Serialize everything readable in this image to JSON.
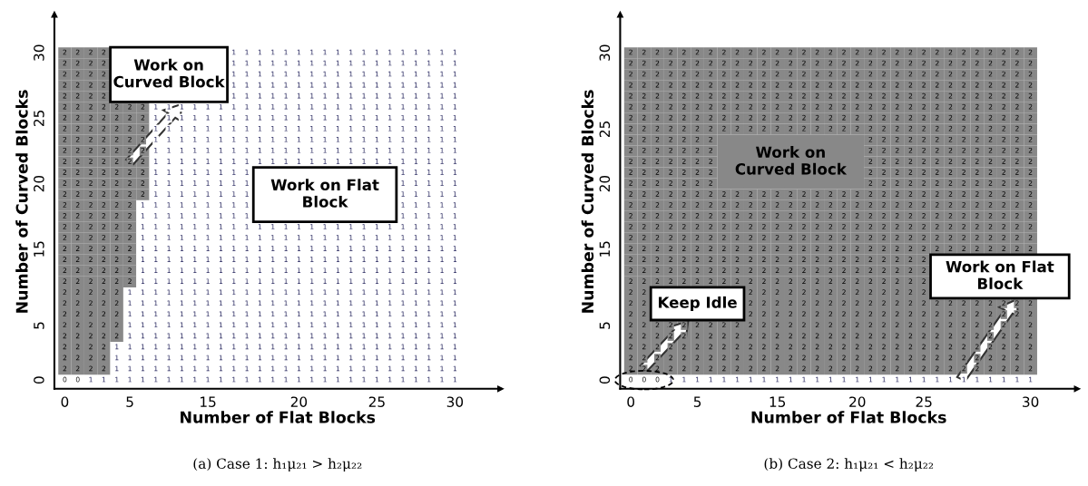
{
  "chart_data": [
    {
      "type": "heatmap",
      "xlabel": "Number of Flat Blocks",
      "ylabel": "Number of Curved Blocks",
      "data_labels": true,
      "categories": [
        "0",
        null,
        null,
        null,
        null,
        "5",
        null,
        null,
        null,
        null,
        null,
        "15",
        null,
        null,
        null,
        null,
        null,
        null,
        "20",
        null,
        null,
        null,
        null,
        null,
        "25",
        null,
        null,
        null,
        null,
        null,
        "30"
      ],
      "y_categories": [
        "30",
        null,
        null,
        null,
        null,
        null,
        "25",
        null,
        null,
        null,
        null,
        null,
        "20",
        null,
        null,
        null,
        null,
        null,
        "15",
        null,
        null,
        null,
        null,
        null,
        null,
        "5",
        null,
        null,
        null,
        null,
        "0"
      ],
      "cells": [
        [
          2,
          2,
          2,
          2,
          null,
          null,
          null,
          null,
          null,
          null,
          null,
          null,
          null,
          1,
          1,
          1,
          1,
          1,
          1,
          1,
          1,
          1,
          1,
          1,
          1,
          1,
          1,
          1,
          1,
          1,
          1
        ],
        [
          2,
          2,
          2,
          2,
          null,
          null,
          null,
          null,
          null,
          null,
          null,
          null,
          null,
          1,
          1,
          1,
          1,
          1,
          1,
          1,
          1,
          1,
          1,
          1,
          1,
          1,
          1,
          1,
          1,
          1,
          1
        ],
        [
          2,
          2,
          2,
          2,
          null,
          null,
          null,
          null,
          null,
          null,
          null,
          null,
          null,
          1,
          1,
          1,
          1,
          1,
          1,
          1,
          1,
          1,
          1,
          1,
          1,
          1,
          1,
          1,
          1,
          1,
          1
        ],
        [
          2,
          2,
          2,
          2,
          null,
          null,
          null,
          null,
          null,
          null,
          null,
          null,
          null,
          1,
          1,
          1,
          1,
          1,
          1,
          1,
          1,
          1,
          1,
          1,
          1,
          1,
          1,
          1,
          1,
          1,
          1
        ],
        [
          2,
          2,
          2,
          2,
          null,
          null,
          null,
          null,
          null,
          null,
          null,
          null,
          null,
          1,
          1,
          1,
          1,
          1,
          1,
          1,
          1,
          1,
          1,
          1,
          1,
          1,
          1,
          1,
          1,
          1,
          1
        ],
        [
          2,
          2,
          2,
          2,
          2,
          2,
          2,
          1,
          1,
          1,
          1,
          1,
          1,
          1,
          1,
          1,
          1,
          1,
          1,
          1,
          1,
          1,
          1,
          1,
          1,
          1,
          1,
          1,
          1,
          1,
          1
        ],
        [
          2,
          2,
          2,
          2,
          2,
          2,
          2,
          1,
          1,
          1,
          1,
          1,
          1,
          1,
          1,
          1,
          1,
          1,
          1,
          1,
          1,
          1,
          1,
          1,
          1,
          1,
          1,
          1,
          1,
          1,
          1
        ],
        [
          2,
          2,
          2,
          2,
          2,
          2,
          2,
          1,
          1,
          1,
          1,
          1,
          1,
          1,
          1,
          1,
          1,
          1,
          1,
          1,
          1,
          1,
          1,
          1,
          1,
          1,
          1,
          1,
          1,
          1,
          1
        ],
        [
          2,
          2,
          2,
          2,
          2,
          2,
          2,
          1,
          1,
          1,
          1,
          1,
          1,
          1,
          1,
          1,
          1,
          1,
          1,
          1,
          1,
          1,
          1,
          1,
          1,
          1,
          1,
          1,
          1,
          1,
          1
        ],
        [
          2,
          2,
          2,
          2,
          2,
          2,
          2,
          1,
          1,
          1,
          1,
          1,
          1,
          1,
          1,
          1,
          1,
          1,
          1,
          1,
          1,
          1,
          1,
          1,
          1,
          1,
          1,
          1,
          1,
          1,
          1
        ],
        [
          2,
          2,
          2,
          2,
          2,
          2,
          2,
          1,
          1,
          1,
          1,
          1,
          1,
          1,
          1,
          1,
          1,
          1,
          1,
          1,
          1,
          1,
          1,
          1,
          1,
          1,
          1,
          1,
          1,
          1,
          1
        ],
        [
          2,
          2,
          2,
          2,
          2,
          2,
          2,
          1,
          1,
          1,
          1,
          1,
          1,
          1,
          1,
          null,
          null,
          null,
          null,
          null,
          null,
          null,
          null,
          null,
          null,
          null,
          1,
          1,
          1,
          1,
          1
        ],
        [
          2,
          2,
          2,
          2,
          2,
          2,
          2,
          1,
          1,
          1,
          1,
          1,
          1,
          1,
          1,
          null,
          null,
          null,
          null,
          null,
          null,
          null,
          null,
          null,
          null,
          null,
          1,
          1,
          1,
          1,
          1
        ],
        [
          2,
          2,
          2,
          2,
          2,
          2,
          2,
          1,
          1,
          1,
          1,
          1,
          1,
          1,
          1,
          null,
          null,
          null,
          null,
          null,
          null,
          null,
          null,
          null,
          null,
          null,
          1,
          1,
          1,
          1,
          1
        ],
        [
          2,
          2,
          2,
          2,
          2,
          2,
          1,
          1,
          1,
          1,
          1,
          1,
          1,
          1,
          1,
          null,
          null,
          null,
          null,
          null,
          null,
          null,
          null,
          null,
          null,
          null,
          1,
          1,
          1,
          1,
          1
        ],
        [
          2,
          2,
          2,
          2,
          2,
          2,
          1,
          1,
          1,
          1,
          1,
          1,
          1,
          1,
          1,
          null,
          null,
          null,
          null,
          null,
          null,
          null,
          null,
          null,
          null,
          null,
          1,
          1,
          1,
          1,
          1
        ],
        [
          2,
          2,
          2,
          2,
          2,
          2,
          1,
          1,
          1,
          1,
          1,
          1,
          1,
          1,
          1,
          1,
          1,
          1,
          1,
          1,
          1,
          1,
          1,
          1,
          1,
          1,
          1,
          1,
          1,
          1,
          1
        ],
        [
          2,
          2,
          2,
          2,
          2,
          2,
          1,
          1,
          1,
          1,
          1,
          1,
          1,
          1,
          1,
          1,
          1,
          1,
          1,
          1,
          1,
          1,
          1,
          1,
          1,
          1,
          1,
          1,
          1,
          1,
          1
        ],
        [
          2,
          2,
          2,
          2,
          2,
          2,
          1,
          1,
          1,
          1,
          1,
          1,
          1,
          1,
          1,
          1,
          1,
          1,
          1,
          1,
          1,
          1,
          1,
          1,
          1,
          1,
          1,
          1,
          1,
          1,
          1
        ],
        [
          2,
          2,
          2,
          2,
          2,
          2,
          1,
          1,
          1,
          1,
          1,
          1,
          1,
          1,
          1,
          1,
          1,
          1,
          1,
          1,
          1,
          1,
          1,
          1,
          1,
          1,
          1,
          1,
          1,
          1,
          1
        ],
        [
          2,
          2,
          2,
          2,
          2,
          2,
          1,
          1,
          1,
          1,
          1,
          1,
          1,
          1,
          1,
          1,
          1,
          1,
          1,
          1,
          1,
          1,
          1,
          1,
          1,
          1,
          1,
          1,
          1,
          1,
          1
        ],
        [
          2,
          2,
          2,
          2,
          2,
          2,
          1,
          1,
          1,
          1,
          1,
          1,
          1,
          1,
          1,
          1,
          1,
          1,
          1,
          1,
          1,
          1,
          1,
          1,
          1,
          1,
          1,
          1,
          1,
          1,
          1
        ],
        [
          2,
          2,
          2,
          2,
          2,
          1,
          1,
          1,
          1,
          1,
          1,
          1,
          1,
          1,
          1,
          1,
          1,
          1,
          1,
          1,
          1,
          1,
          1,
          1,
          1,
          1,
          1,
          1,
          1,
          1,
          1
        ],
        [
          2,
          2,
          2,
          2,
          2,
          1,
          1,
          1,
          1,
          1,
          1,
          1,
          1,
          1,
          1,
          1,
          1,
          1,
          1,
          1,
          1,
          1,
          1,
          1,
          1,
          1,
          1,
          1,
          1,
          1,
          1
        ],
        [
          2,
          2,
          2,
          2,
          2,
          1,
          1,
          1,
          1,
          1,
          1,
          1,
          1,
          1,
          1,
          1,
          1,
          1,
          1,
          1,
          1,
          1,
          1,
          1,
          1,
          1,
          1,
          1,
          1,
          1,
          1
        ],
        [
          2,
          2,
          2,
          2,
          2,
          1,
          1,
          1,
          1,
          1,
          1,
          1,
          1,
          1,
          1,
          1,
          1,
          1,
          1,
          1,
          1,
          1,
          1,
          1,
          1,
          1,
          1,
          1,
          1,
          1,
          1
        ],
        [
          2,
          2,
          2,
          2,
          2,
          1,
          1,
          1,
          1,
          1,
          1,
          1,
          1,
          1,
          1,
          1,
          1,
          1,
          1,
          1,
          1,
          1,
          1,
          1,
          1,
          1,
          1,
          1,
          1,
          1,
          1
        ],
        [
          2,
          2,
          2,
          2,
          1,
          1,
          1,
          1,
          1,
          1,
          1,
          1,
          1,
          1,
          1,
          1,
          1,
          1,
          1,
          1,
          1,
          1,
          1,
          1,
          1,
          1,
          1,
          1,
          1,
          1,
          1
        ],
        [
          2,
          2,
          2,
          2,
          1,
          1,
          1,
          1,
          1,
          1,
          1,
          1,
          1,
          1,
          1,
          1,
          1,
          1,
          1,
          1,
          1,
          1,
          1,
          1,
          1,
          1,
          1,
          1,
          1,
          1,
          1
        ],
        [
          2,
          2,
          2,
          2,
          1,
          1,
          1,
          1,
          1,
          1,
          1,
          1,
          1,
          1,
          1,
          1,
          1,
          1,
          1,
          1,
          1,
          1,
          1,
          1,
          1,
          1,
          1,
          1,
          1,
          1,
          1
        ],
        [
          0,
          0,
          1,
          1,
          1,
          1,
          1,
          1,
          1,
          1,
          1,
          1,
          1,
          1,
          1,
          1,
          1,
          1,
          1,
          1,
          1,
          1,
          1,
          1,
          1,
          1,
          1,
          1,
          1,
          1,
          1
        ]
      ],
      "annotations": [
        "Work on\nCurved Block",
        "Work on Flat\nBlock",
        "(a) Case 1: h₁μ₂₁ > h₂μ₂₂"
      ]
    },
    {
      "type": "heatmap",
      "xlabel": "Number of Flat Blocks",
      "ylabel": "Number of Curved Blocks",
      "data_labels": true,
      "categories": [
        "0",
        null,
        null,
        null,
        null,
        "5",
        null,
        null,
        null,
        null,
        null,
        "15",
        null,
        null,
        null,
        null,
        null,
        "20",
        null,
        null,
        null,
        null,
        "25",
        null,
        null,
        null,
        null,
        null,
        null,
        null,
        "30"
      ],
      "y_categories": [
        "30",
        null,
        null,
        null,
        null,
        null,
        null,
        "25",
        null,
        null,
        null,
        null,
        "20",
        null,
        null,
        null,
        null,
        null,
        "15",
        null,
        null,
        null,
        null,
        null,
        null,
        "5",
        null,
        null,
        null,
        null,
        "0"
      ],
      "cells": [
        [
          2,
          2,
          2,
          2,
          2,
          2,
          2,
          2,
          2,
          2,
          2,
          2,
          2,
          2,
          2,
          2,
          2,
          2,
          2,
          2,
          2,
          2,
          2,
          2,
          2,
          2,
          2,
          2,
          2,
          2,
          2
        ],
        [
          2,
          2,
          2,
          2,
          2,
          2,
          2,
          2,
          2,
          2,
          2,
          2,
          2,
          2,
          2,
          2,
          2,
          2,
          2,
          2,
          2,
          2,
          2,
          2,
          2,
          2,
          2,
          2,
          2,
          2,
          2
        ],
        [
          2,
          2,
          2,
          2,
          2,
          2,
          2,
          2,
          2,
          2,
          2,
          2,
          2,
          2,
          2,
          2,
          2,
          2,
          2,
          2,
          2,
          2,
          2,
          2,
          2,
          2,
          2,
          2,
          2,
          2,
          2
        ],
        [
          2,
          2,
          2,
          2,
          2,
          2,
          2,
          2,
          2,
          2,
          2,
          2,
          2,
          2,
          2,
          2,
          2,
          2,
          2,
          2,
          2,
          2,
          2,
          2,
          2,
          2,
          2,
          2,
          2,
          2,
          2
        ],
        [
          2,
          2,
          2,
          2,
          2,
          2,
          2,
          2,
          2,
          2,
          2,
          2,
          2,
          2,
          2,
          2,
          2,
          2,
          2,
          2,
          2,
          2,
          2,
          2,
          2,
          2,
          2,
          2,
          2,
          2,
          2
        ],
        [
          2,
          2,
          2,
          2,
          2,
          2,
          2,
          2,
          2,
          2,
          2,
          2,
          2,
          2,
          2,
          2,
          2,
          2,
          2,
          2,
          2,
          2,
          2,
          2,
          2,
          2,
          2,
          2,
          2,
          2,
          2
        ],
        [
          2,
          2,
          2,
          2,
          2,
          2,
          2,
          2,
          2,
          2,
          2,
          2,
          2,
          2,
          2,
          2,
          2,
          2,
          2,
          2,
          2,
          2,
          2,
          2,
          2,
          2,
          2,
          2,
          2,
          2,
          2
        ],
        [
          2,
          2,
          2,
          2,
          2,
          2,
          2,
          2,
          2,
          2,
          2,
          2,
          2,
          2,
          2,
          2,
          2,
          2,
          2,
          2,
          2,
          2,
          2,
          2,
          2,
          2,
          2,
          2,
          2,
          2,
          2
        ],
        [
          2,
          2,
          2,
          2,
          2,
          2,
          2,
          null,
          null,
          null,
          null,
          null,
          null,
          null,
          null,
          null,
          null,
          null,
          2,
          2,
          2,
          2,
          2,
          2,
          2,
          2,
          2,
          2,
          2,
          2,
          2
        ],
        [
          2,
          2,
          2,
          2,
          2,
          2,
          2,
          null,
          null,
          null,
          null,
          null,
          null,
          null,
          null,
          null,
          null,
          null,
          2,
          2,
          2,
          2,
          2,
          2,
          2,
          2,
          2,
          2,
          2,
          2,
          2
        ],
        [
          2,
          2,
          2,
          2,
          2,
          2,
          2,
          null,
          null,
          null,
          null,
          null,
          null,
          null,
          null,
          null,
          null,
          null,
          2,
          2,
          2,
          2,
          2,
          2,
          2,
          2,
          2,
          2,
          2,
          2,
          2
        ],
        [
          2,
          2,
          2,
          2,
          2,
          2,
          2,
          null,
          null,
          null,
          null,
          null,
          null,
          null,
          null,
          null,
          null,
          null,
          2,
          2,
          2,
          2,
          2,
          2,
          2,
          2,
          2,
          2,
          2,
          2,
          2
        ],
        [
          2,
          2,
          2,
          2,
          2,
          2,
          2,
          null,
          null,
          null,
          null,
          null,
          null,
          null,
          null,
          null,
          null,
          null,
          2,
          2,
          2,
          2,
          2,
          2,
          2,
          2,
          2,
          2,
          2,
          2,
          2
        ],
        [
          2,
          2,
          2,
          2,
          2,
          2,
          2,
          2,
          2,
          2,
          2,
          2,
          2,
          2,
          2,
          2,
          2,
          2,
          2,
          2,
          2,
          2,
          2,
          2,
          2,
          2,
          2,
          2,
          2,
          2,
          2
        ],
        [
          2,
          2,
          2,
          2,
          2,
          2,
          2,
          2,
          2,
          2,
          2,
          2,
          2,
          2,
          2,
          2,
          2,
          2,
          2,
          2,
          2,
          2,
          2,
          2,
          2,
          2,
          2,
          2,
          2,
          2,
          2
        ],
        [
          2,
          2,
          2,
          2,
          2,
          2,
          2,
          2,
          2,
          2,
          2,
          2,
          2,
          2,
          2,
          2,
          2,
          2,
          2,
          2,
          2,
          2,
          2,
          2,
          2,
          2,
          2,
          2,
          2,
          2,
          2
        ],
        [
          2,
          2,
          2,
          2,
          2,
          2,
          2,
          2,
          2,
          2,
          2,
          2,
          2,
          2,
          2,
          2,
          2,
          2,
          2,
          2,
          2,
          2,
          2,
          2,
          2,
          2,
          2,
          2,
          2,
          2,
          2
        ],
        [
          2,
          2,
          2,
          2,
          2,
          2,
          2,
          2,
          2,
          2,
          2,
          2,
          2,
          2,
          2,
          2,
          2,
          2,
          2,
          2,
          2,
          2,
          2,
          2,
          2,
          2,
          2,
          2,
          2,
          2,
          2
        ],
        [
          2,
          2,
          2,
          2,
          2,
          2,
          2,
          2,
          2,
          2,
          2,
          2,
          2,
          2,
          2,
          2,
          2,
          2,
          2,
          2,
          2,
          2,
          2,
          2,
          2,
          2,
          2,
          2,
          2,
          2,
          2
        ],
        [
          2,
          2,
          2,
          2,
          2,
          2,
          2,
          2,
          2,
          2,
          2,
          2,
          2,
          2,
          2,
          2,
          2,
          2,
          2,
          2,
          2,
          2,
          2,
          null,
          null,
          null,
          null,
          null,
          null,
          null,
          null
        ],
        [
          2,
          2,
          2,
          2,
          2,
          2,
          2,
          2,
          2,
          2,
          2,
          2,
          2,
          2,
          2,
          2,
          2,
          2,
          2,
          2,
          2,
          2,
          2,
          null,
          null,
          null,
          null,
          null,
          null,
          null,
          null
        ],
        [
          2,
          2,
          2,
          2,
          2,
          2,
          2,
          2,
          2,
          2,
          2,
          2,
          2,
          2,
          2,
          2,
          2,
          2,
          2,
          2,
          2,
          2,
          2,
          null,
          null,
          null,
          null,
          null,
          null,
          null,
          null
        ],
        [
          2,
          2,
          null,
          null,
          null,
          null,
          null,
          null,
          null,
          2,
          2,
          2,
          2,
          2,
          2,
          2,
          2,
          2,
          2,
          2,
          2,
          2,
          2,
          null,
          null,
          null,
          null,
          null,
          null,
          null,
          null
        ],
        [
          2,
          2,
          null,
          null,
          null,
          null,
          null,
          null,
          null,
          2,
          2,
          2,
          2,
          2,
          2,
          2,
          2,
          2,
          2,
          2,
          2,
          2,
          2,
          2,
          2,
          2,
          2,
          2,
          2,
          2,
          2
        ],
        [
          2,
          2,
          null,
          null,
          null,
          null,
          null,
          null,
          null,
          2,
          2,
          2,
          2,
          2,
          2,
          2,
          2,
          2,
          2,
          2,
          2,
          2,
          2,
          2,
          2,
          2,
          2,
          2,
          2,
          2,
          2
        ],
        [
          2,
          2,
          2,
          2,
          2,
          2,
          2,
          2,
          2,
          2,
          2,
          2,
          2,
          2,
          2,
          2,
          2,
          2,
          2,
          2,
          2,
          2,
          2,
          2,
          2,
          2,
          2,
          2,
          2,
          2,
          2
        ],
        [
          2,
          2,
          2,
          2,
          2,
          2,
          2,
          2,
          2,
          2,
          2,
          2,
          2,
          2,
          2,
          2,
          2,
          2,
          2,
          2,
          2,
          2,
          2,
          2,
          2,
          2,
          2,
          2,
          2,
          2,
          2
        ],
        [
          2,
          2,
          2,
          2,
          2,
          2,
          2,
          2,
          2,
          2,
          2,
          2,
          2,
          2,
          2,
          2,
          2,
          2,
          2,
          2,
          2,
          2,
          2,
          2,
          2,
          2,
          2,
          2,
          2,
          2,
          2
        ],
        [
          2,
          2,
          2,
          2,
          2,
          2,
          2,
          2,
          2,
          2,
          2,
          2,
          2,
          2,
          2,
          2,
          2,
          2,
          2,
          2,
          2,
          2,
          2,
          2,
          2,
          2,
          2,
          2,
          2,
          2,
          2
        ],
        [
          2,
          2,
          2,
          2,
          2,
          2,
          2,
          2,
          2,
          2,
          2,
          2,
          2,
          2,
          2,
          2,
          2,
          2,
          2,
          2,
          2,
          2,
          2,
          2,
          2,
          2,
          2,
          2,
          2,
          2,
          2
        ],
        [
          0,
          0,
          0,
          1,
          1,
          1,
          1,
          1,
          1,
          1,
          1,
          1,
          1,
          1,
          1,
          1,
          1,
          1,
          1,
          1,
          1,
          1,
          1,
          1,
          1,
          1,
          1,
          1,
          1,
          1,
          1
        ]
      ],
      "annotations": [
        "Work on\nCurved Block",
        "Keep Idle",
        "Work on Flat\nBlock",
        "(b) Case 2: h₁μ₂₁ < h₂μ₂₂"
      ]
    }
  ]
}
